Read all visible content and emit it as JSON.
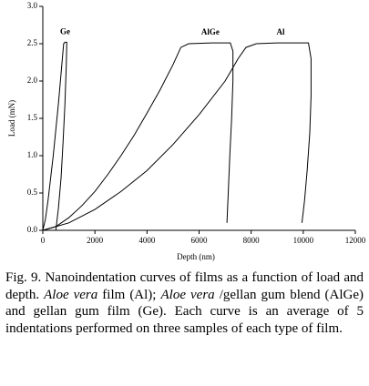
{
  "chart_data": {
    "type": "line",
    "x_label": "Depth (nm)",
    "y_label": "Load (mN)",
    "xlim": [
      0,
      12000
    ],
    "xticks": [
      0,
      2000,
      4000,
      6000,
      8000,
      10000,
      12000
    ],
    "ylim": [
      0,
      3
    ],
    "yticks": [
      {
        "value": 0,
        "label": "0.0"
      },
      0.5,
      {
        "value": 1,
        "label": "1.0"
      },
      1.5,
      {
        "value": 2,
        "label": "2.0"
      },
      2.5,
      {
        "value": 3,
        "label": "3.0"
      }
    ],
    "grid": false,
    "series": [
      {
        "name": "Ge",
        "color": "#000000",
        "x": [
          0,
          100,
          200,
          300,
          400,
          500,
          600,
          700,
          800,
          850,
          920,
          900,
          850,
          780,
          700,
          600,
          500
        ],
        "values": [
          0,
          0.15,
          0.4,
          0.7,
          1.0,
          1.35,
          1.7,
          2.1,
          2.5,
          2.52,
          2.52,
          2.2,
          1.7,
          1.2,
          0.7,
          0.3,
          0
        ]
      },
      {
        "name": "AlGe",
        "color": "#000000",
        "x": [
          0,
          500,
          1000,
          1500,
          2000,
          2500,
          3000,
          3500,
          4000,
          4500,
          5000,
          5300,
          5600,
          6500,
          7200,
          7300,
          7300,
          7250,
          7180,
          7120,
          7070
        ],
        "values": [
          0,
          0.05,
          0.17,
          0.33,
          0.52,
          0.75,
          1.0,
          1.27,
          1.57,
          1.88,
          2.22,
          2.45,
          2.5,
          2.51,
          2.51,
          2.4,
          2.0,
          1.5,
          1.0,
          0.5,
          0.1
        ]
      },
      {
        "name": "Al",
        "color": "#000000",
        "x": [
          0,
          1000,
          2000,
          3000,
          4000,
          5000,
          6000,
          7000,
          7500,
          7800,
          8200,
          9000,
          10200,
          10300,
          10300,
          10250,
          10150,
          10050,
          9950
        ],
        "values": [
          0,
          0.1,
          0.28,
          0.52,
          0.8,
          1.15,
          1.55,
          2.0,
          2.3,
          2.45,
          2.5,
          2.51,
          2.51,
          2.3,
          1.8,
          1.3,
          0.8,
          0.4,
          0.1
        ]
      }
    ]
  },
  "caption": [
    {
      "text": "Fig. 9. Nanoindentation curves of films as a function of load and depth. ",
      "italic": false
    },
    {
      "text": "Aloe vera",
      "italic": true
    },
    {
      "text": " film (Al); ",
      "italic": false
    },
    {
      "text": "Aloe vera",
      "italic": true
    },
    {
      "text": " /gellan gum blend (AlGe) and gellan gum film (Ge). Each curve is an average of 5 indentations performed on three samples of each type of film.",
      "italic": false
    }
  ]
}
